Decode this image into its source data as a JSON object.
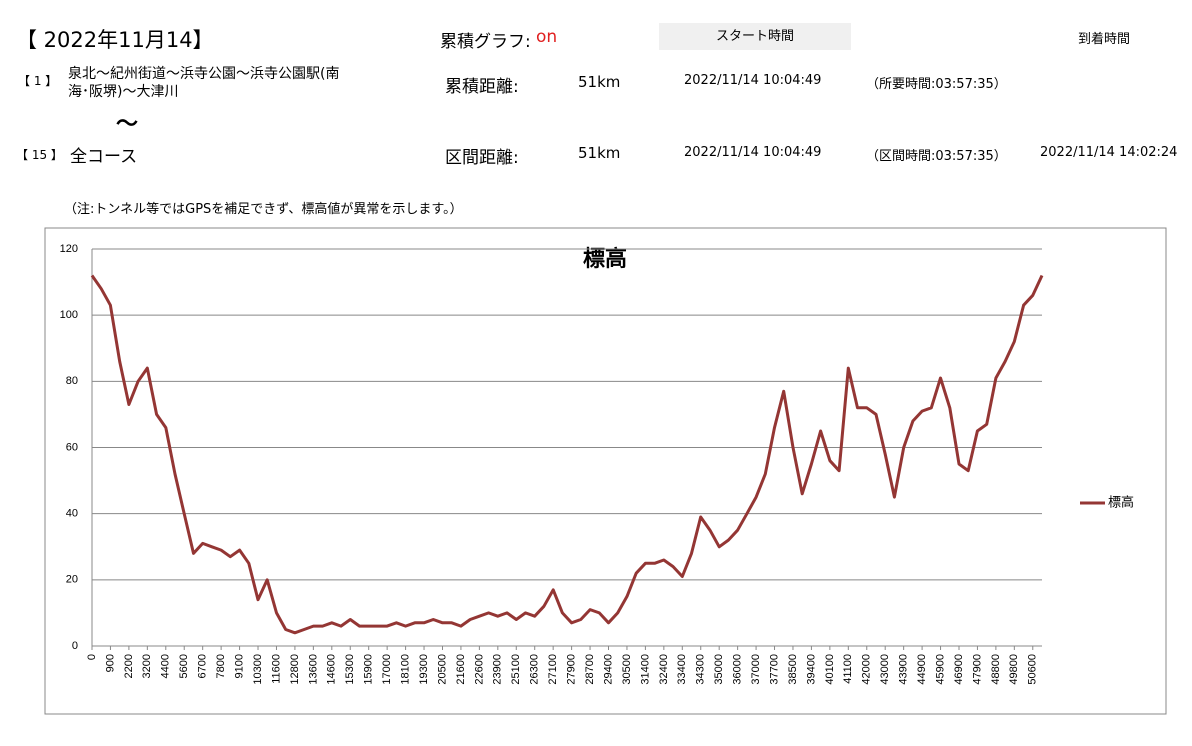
{
  "header": {
    "date": "【 2022年11月14】",
    "graph_label": "累積グラフ:",
    "graph_state": "on",
    "start_header": "スタート時間",
    "arrival_header": "到着時間",
    "from_no": "【 1 】",
    "from_name_1": "泉北～紀州街道～浜寺公園～浜寺公園駅(南",
    "from_name_2": "海･阪堺)～大津川",
    "tilde": "～",
    "to_no": "【 15 】",
    "to_name": "全コース",
    "row1": {
      "label": "累積距離:",
      "distance": "51km",
      "start": "2022/11/14 10:04:49",
      "duration": "（所要時間:03:57:35）"
    },
    "row2": {
      "label": "区間距離:",
      "distance": "51km",
      "start": "2022/11/14 10:04:49",
      "duration": "（区間時間:03:57:35）",
      "arrival": "2022/11/14 14:02:24"
    },
    "note": "（注:トンネル等ではGPSを補足できず、標高値が異常を示します。）"
  },
  "chart_data": {
    "type": "line",
    "title": "標高",
    "categories": [
      "0",
      null,
      "900",
      null,
      "2200",
      null,
      "3200",
      null,
      "4400",
      null,
      "5600",
      null,
      "6700",
      null,
      "7800",
      null,
      "9100",
      null,
      "10300",
      null,
      "11600",
      null,
      "12800",
      null,
      "13600",
      null,
      "14600",
      null,
      "15300",
      null,
      "15900",
      null,
      "17000",
      null,
      "18100",
      null,
      "19300",
      null,
      "20500",
      null,
      "21600",
      null,
      "22600",
      null,
      "23900",
      null,
      "25100",
      null,
      "26300",
      null,
      "27100",
      null,
      "27900",
      null,
      "28700",
      null,
      "29400",
      null,
      "30500",
      null,
      "31400",
      null,
      "32400",
      null,
      "33400",
      null,
      "34300",
      null,
      "35000",
      null,
      "36000",
      null,
      "37000",
      null,
      "37700",
      null,
      "38500",
      null,
      "39400",
      null,
      "40100",
      null,
      "41100",
      null,
      "42000",
      null,
      "43000",
      null,
      "43900",
      null,
      "44900",
      null,
      "45900",
      null,
      "46900",
      null,
      "47900",
      null,
      "48800",
      null,
      "49800",
      null,
      "50600",
      null
    ],
    "series": [
      {
        "name": "標高",
        "color": "#943634",
        "values": [
          112,
          108,
          103,
          86,
          73,
          80,
          84,
          70,
          66,
          52,
          40,
          28,
          31,
          30,
          29,
          27,
          29,
          25,
          14,
          20,
          10,
          5,
          4,
          5,
          6,
          6,
          7,
          6,
          8,
          6,
          6,
          6,
          6,
          7,
          6,
          7,
          7,
          8,
          7,
          7,
          6,
          8,
          9,
          10,
          9,
          10,
          8,
          10,
          9,
          12,
          17,
          10,
          7,
          8,
          11,
          10,
          7,
          10,
          15,
          22,
          25,
          25,
          26,
          24,
          21,
          28,
          39,
          35,
          30,
          32,
          35,
          40,
          45,
          52,
          66,
          77,
          60,
          46,
          55,
          65,
          56,
          53,
          84,
          72,
          72,
          70,
          58,
          45,
          60,
          68,
          71,
          72,
          81,
          72,
          55,
          53,
          65,
          67,
          81,
          86,
          92,
          103,
          106,
          112
        ]
      }
    ],
    "ylim": [
      0,
      120
    ],
    "yticks": [
      0,
      20,
      40,
      60,
      80,
      100,
      120
    ],
    "grid": true,
    "legend": "right"
  }
}
